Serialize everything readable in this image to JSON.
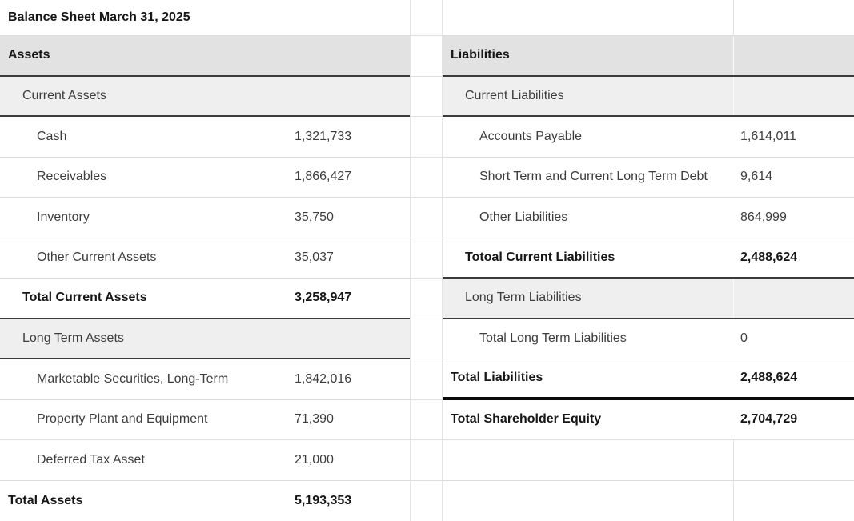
{
  "sheet_title": "Balance Sheet March 31, 2025",
  "colors": {
    "section_header_bg": "#e2e2e2",
    "subsection_bg": "#efefef",
    "grid_line": "#dcdcdc",
    "section_border": "#3b3b3b",
    "total_liabilities_rule": "#0a0a0a",
    "text_regular": "#3d3d3d",
    "text_bold": "#161616"
  },
  "assets": {
    "rows": [
      {
        "label": "Balance Sheet March 31, 2025",
        "value": ""
      },
      {
        "label": "Assets",
        "value": ""
      },
      {
        "label": "Current Assets",
        "value": ""
      },
      {
        "label": "Cash",
        "value": "1,321,733"
      },
      {
        "label": "Receivables",
        "value": "1,866,427"
      },
      {
        "label": "Inventory",
        "value": "35,750"
      },
      {
        "label": "Other Current Assets",
        "value": "35,037"
      },
      {
        "label": "Total Current Assets",
        "value": "3,258,947"
      },
      {
        "label": "Long Term Assets",
        "value": ""
      },
      {
        "label": "Marketable Securities, Long-Term",
        "value": "1,842,016"
      },
      {
        "label": "Property Plant and Equipment",
        "value": "71,390"
      },
      {
        "label": "Deferred Tax Asset",
        "value": "21,000"
      },
      {
        "label": "Total Assets",
        "value": "5,193,353"
      }
    ]
  },
  "liabilities": {
    "rows": [
      {
        "label": "",
        "value": ""
      },
      {
        "label": "Liabilities",
        "value": ""
      },
      {
        "label": "Current Liabilities",
        "value": ""
      },
      {
        "label": "Accounts Payable",
        "value": "1,614,011"
      },
      {
        "label": "Short Term and Current Long Term Debt",
        "value": "9,614"
      },
      {
        "label": "Other Liabilities",
        "value": "864,999"
      },
      {
        "label": "Totoal Current Liabilities",
        "value": "2,488,624"
      },
      {
        "label": "Long Term Liabilities",
        "value": ""
      },
      {
        "label": "Total Long Term Liabilities",
        "value": "0"
      },
      {
        "label": "Total Liabilities",
        "value": "2,488,624"
      },
      {
        "label": "Total Shareholder Equity",
        "value": "2,704,729"
      },
      {
        "label": "",
        "value": ""
      },
      {
        "label": "",
        "value": ""
      }
    ]
  }
}
